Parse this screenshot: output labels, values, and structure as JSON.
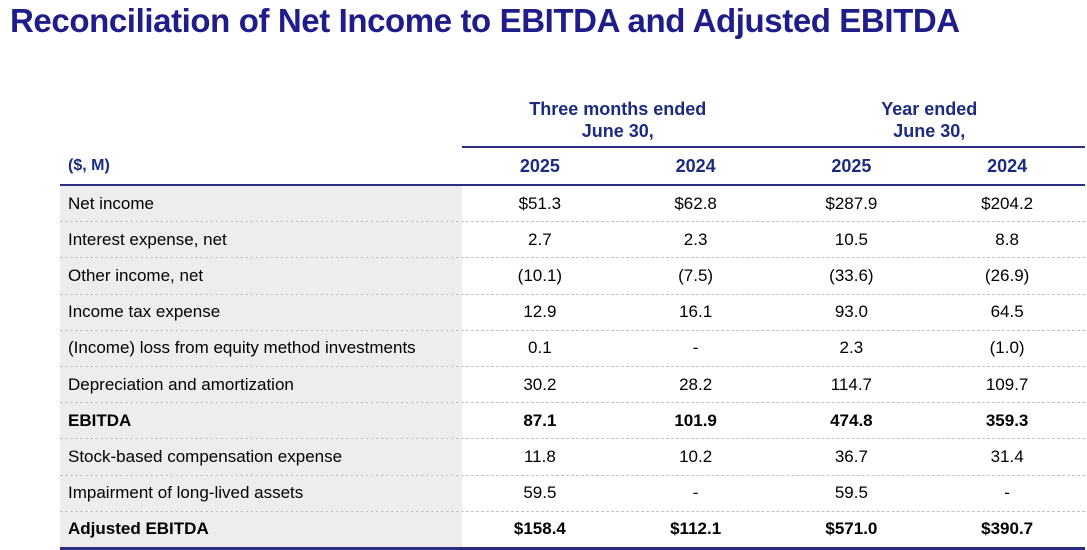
{
  "title": "Reconciliation of Net Income to EBITDA and Adjusted EBITDA",
  "colors": {
    "title_navy": "#201c8a",
    "header_navy": "#1c2b80",
    "rule_navy": "#2b2e80",
    "label_bg": "#ededed",
    "row_divider": "#c2c2c2",
    "text_black": "#000000"
  },
  "table": {
    "unit_label": "($, M)",
    "col_groups": [
      {
        "line1": "Three months ended",
        "line2": "June 30,"
      },
      {
        "line1": "Year ended",
        "line2": "June 30,"
      }
    ],
    "year_headers": [
      "2025",
      "2024",
      "2025",
      "2024"
    ],
    "rows": [
      {
        "label": "Net income",
        "bold": false,
        "values": [
          "$51.3",
          "$62.8",
          "$287.9",
          "$204.2"
        ]
      },
      {
        "label": "Interest expense, net",
        "bold": false,
        "values": [
          "2.7",
          "2.3",
          "10.5",
          "8.8"
        ]
      },
      {
        "label": "Other income, net",
        "bold": false,
        "values": [
          "(10.1)",
          "(7.5)",
          "(33.6)",
          "(26.9)"
        ]
      },
      {
        "label": "Income tax expense",
        "bold": false,
        "values": [
          "12.9",
          "16.1",
          "93.0",
          "64.5"
        ]
      },
      {
        "label": "(Income) loss from equity method investments",
        "bold": false,
        "values": [
          "0.1",
          "-",
          "2.3",
          "(1.0)"
        ]
      },
      {
        "label": "Depreciation and amortization",
        "bold": false,
        "values": [
          "30.2",
          "28.2",
          "114.7",
          "109.7"
        ]
      },
      {
        "label": "EBITDA",
        "bold": true,
        "values": [
          "87.1",
          "101.9",
          "474.8",
          "359.3"
        ]
      },
      {
        "label": "Stock-based compensation expense",
        "bold": false,
        "values": [
          "11.8",
          "10.2",
          "36.7",
          "31.4"
        ]
      },
      {
        "label": "Impairment of long-lived assets",
        "bold": false,
        "values": [
          "59.5",
          "-",
          "59.5",
          "-"
        ]
      },
      {
        "label": "Adjusted EBITDA",
        "bold": true,
        "values": [
          "$158.4",
          "$112.1",
          "$571.0",
          "$390.7"
        ]
      }
    ]
  }
}
